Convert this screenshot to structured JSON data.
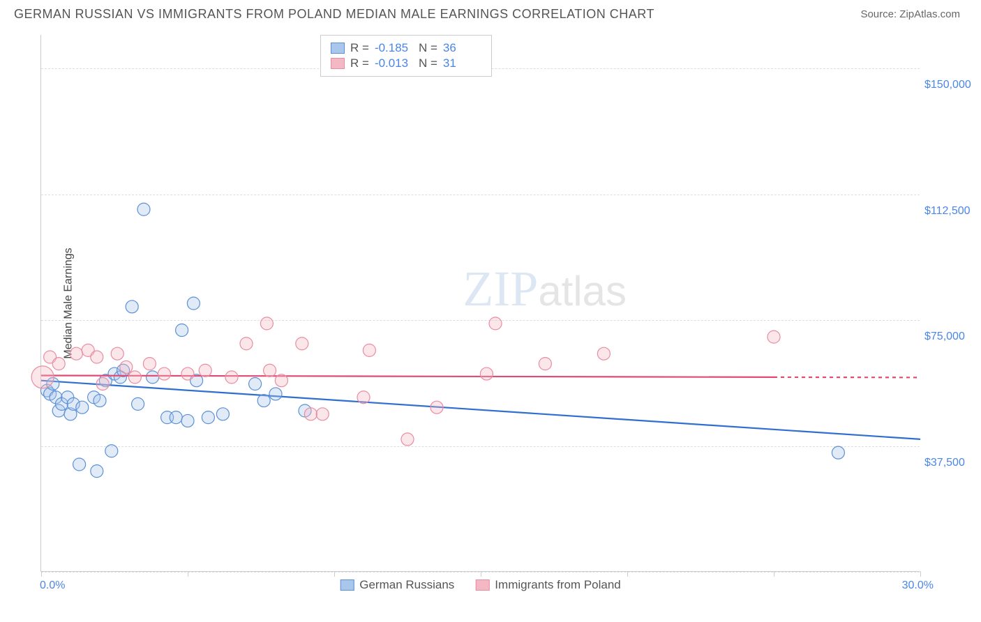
{
  "header": {
    "title": "GERMAN RUSSIAN VS IMMIGRANTS FROM POLAND MEDIAN MALE EARNINGS CORRELATION CHART",
    "source": "Source: ZipAtlas.com"
  },
  "chart": {
    "type": "scatter",
    "y_axis_title": "Median Male Earnings",
    "xlim": [
      0.0,
      30.0
    ],
    "ylim": [
      0,
      160000
    ],
    "x_ticks_pct": [
      0,
      5,
      10,
      15,
      20,
      25,
      30
    ],
    "x_start_label": "0.0%",
    "x_end_label": "30.0%",
    "y_gridlines": [
      0,
      37500,
      75000,
      112500,
      150000
    ],
    "y_tick_labels": [
      "$37,500",
      "$75,000",
      "$112,500",
      "$150,000"
    ],
    "background_color": "#ffffff",
    "grid_color": "#dddddd",
    "axis_color": "#cccccc",
    "tick_label_color": "#4a86e8",
    "marker_radius": 9,
    "marker_stroke_width": 1.2,
    "marker_fill_opacity": 0.35,
    "trend_line_width": 2.2,
    "series": [
      {
        "name": "German Russians",
        "color_fill": "#a9c7ec",
        "color_stroke": "#5b8fd6",
        "color_line": "#2f6fd0",
        "R": "-0.185",
        "N": "36",
        "trend": {
          "x1": 0.0,
          "y1": 57000,
          "x2": 30.0,
          "y2": 39500
        },
        "points": [
          {
            "x": 0.2,
            "y": 54000
          },
          {
            "x": 0.3,
            "y": 53000
          },
          {
            "x": 0.4,
            "y": 56000
          },
          {
            "x": 0.5,
            "y": 52000
          },
          {
            "x": 0.6,
            "y": 48000
          },
          {
            "x": 0.7,
            "y": 50000
          },
          {
            "x": 0.9,
            "y": 52000
          },
          {
            "x": 1.0,
            "y": 47000
          },
          {
            "x": 1.1,
            "y": 50000
          },
          {
            "x": 1.3,
            "y": 32000
          },
          {
            "x": 1.4,
            "y": 49000
          },
          {
            "x": 1.8,
            "y": 52000
          },
          {
            "x": 1.9,
            "y": 30000
          },
          {
            "x": 2.0,
            "y": 51000
          },
          {
            "x": 2.2,
            "y": 57000
          },
          {
            "x": 2.4,
            "y": 36000
          },
          {
            "x": 2.5,
            "y": 59000
          },
          {
            "x": 2.7,
            "y": 58000
          },
          {
            "x": 2.8,
            "y": 60000
          },
          {
            "x": 3.1,
            "y": 79000
          },
          {
            "x": 3.3,
            "y": 50000
          },
          {
            "x": 3.5,
            "y": 108000
          },
          {
            "x": 3.8,
            "y": 58000
          },
          {
            "x": 4.3,
            "y": 46000
          },
          {
            "x": 4.6,
            "y": 46000
          },
          {
            "x": 4.8,
            "y": 72000
          },
          {
            "x": 5.0,
            "y": 45000
          },
          {
            "x": 5.2,
            "y": 80000
          },
          {
            "x": 5.3,
            "y": 57000
          },
          {
            "x": 5.7,
            "y": 46000
          },
          {
            "x": 6.2,
            "y": 47000
          },
          {
            "x": 7.3,
            "y": 56000
          },
          {
            "x": 7.6,
            "y": 51000
          },
          {
            "x": 8.0,
            "y": 53000
          },
          {
            "x": 9.0,
            "y": 48000
          },
          {
            "x": 27.2,
            "y": 35500
          }
        ]
      },
      {
        "name": "Immigants from Poland",
        "display_name": "Immigrants from Poland",
        "color_fill": "#f4b8c4",
        "color_stroke": "#e88ca0",
        "color_line": "#e24a72",
        "R": "-0.013",
        "N": "31",
        "trend": {
          "x1": 0.0,
          "y1": 58500,
          "x2": 25.0,
          "y2": 58000
        },
        "trend_dashed_extension": {
          "x1": 25.0,
          "y1": 58000,
          "x2": 30.0,
          "y2": 57900
        },
        "points": [
          {
            "x": 0.05,
            "y": 58000,
            "r": 16
          },
          {
            "x": 0.3,
            "y": 64000
          },
          {
            "x": 0.6,
            "y": 62000
          },
          {
            "x": 1.2,
            "y": 65000
          },
          {
            "x": 1.6,
            "y": 66000
          },
          {
            "x": 1.9,
            "y": 64000
          },
          {
            "x": 2.1,
            "y": 56000
          },
          {
            "x": 2.6,
            "y": 65000
          },
          {
            "x": 2.9,
            "y": 61000
          },
          {
            "x": 3.2,
            "y": 58000
          },
          {
            "x": 3.7,
            "y": 62000
          },
          {
            "x": 4.2,
            "y": 59000
          },
          {
            "x": 5.0,
            "y": 59000
          },
          {
            "x": 5.6,
            "y": 60000
          },
          {
            "x": 6.5,
            "y": 58000
          },
          {
            "x": 7.0,
            "y": 68000
          },
          {
            "x": 7.7,
            "y": 74000
          },
          {
            "x": 7.8,
            "y": 60000
          },
          {
            "x": 8.2,
            "y": 57000
          },
          {
            "x": 8.9,
            "y": 68000
          },
          {
            "x": 9.2,
            "y": 47000
          },
          {
            "x": 9.6,
            "y": 47000
          },
          {
            "x": 11.0,
            "y": 52000
          },
          {
            "x": 11.2,
            "y": 66000
          },
          {
            "x": 12.5,
            "y": 39500
          },
          {
            "x": 13.5,
            "y": 49000
          },
          {
            "x": 15.2,
            "y": 59000
          },
          {
            "x": 15.5,
            "y": 74000
          },
          {
            "x": 17.2,
            "y": 62000
          },
          {
            "x": 19.2,
            "y": 65000
          },
          {
            "x": 25.0,
            "y": 70000
          }
        ]
      }
    ],
    "legend_labels": [
      "German Russians",
      "Immigrants from Poland"
    ]
  },
  "watermark": {
    "zip": "ZIP",
    "atlas": "atlas"
  }
}
